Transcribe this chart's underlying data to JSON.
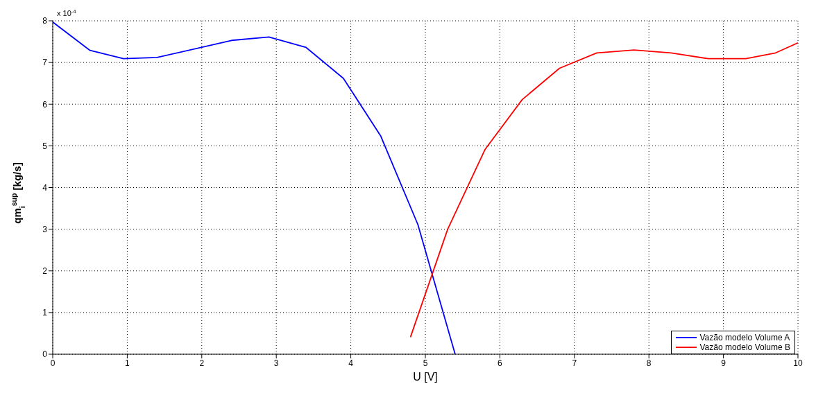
{
  "chart_data": {
    "type": "line",
    "xlabel": "U [V]",
    "ylabel": "qm$_{i}$$^{sup}$ [kg/s]",
    "annotations": [
      "x 10$^{-4}$"
    ],
    "xlim": [
      0,
      10
    ],
    "xticks": [
      0,
      1,
      2,
      3,
      4,
      5,
      6,
      7,
      8,
      9,
      10
    ],
    "ylim": [
      0,
      8
    ],
    "yticks": [
      0,
      1,
      2,
      3,
      4,
      5,
      6,
      7,
      8
    ],
    "grid": true,
    "legend": "bottom right",
    "line_style": "solid",
    "marker": "none",
    "series": [
      {
        "name": "Vazão modelo Volume A",
        "color": "#0000ff",
        "x": [
          0,
          0.5,
          0.95,
          1.4,
          2.4,
          2.9,
          3.4,
          3.9,
          4.4,
          4.9,
          5.4
        ],
        "values": [
          7.97,
          7.29,
          7.09,
          7.12,
          7.53,
          7.61,
          7.36,
          6.62,
          5.24,
          3.11,
          0
        ]
      },
      {
        "name": "Vazão modelo Volume B",
        "color": "#ff0000",
        "x": [
          4.8,
          5.3,
          5.8,
          6.3,
          6.8,
          7.3,
          7.8,
          8.3,
          8.8,
          9.3,
          9.7,
          10
        ],
        "values": [
          0.41,
          3.0,
          4.91,
          6.11,
          6.86,
          7.23,
          7.3,
          7.23,
          7.09,
          7.09,
          7.23,
          7.47
        ]
      }
    ]
  }
}
